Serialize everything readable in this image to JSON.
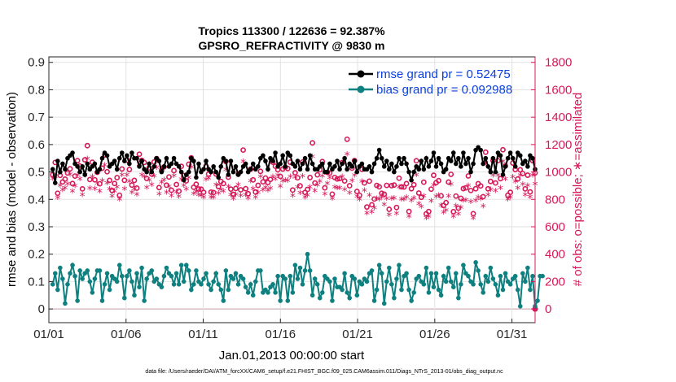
{
  "chart_data": {
    "type": "line",
    "title_line1": "Tropics 113300 / 122636 = 92.387%",
    "title_line2": "GPSRO_REFRACTIVITY @ 9830 m",
    "xlabel": "Jan.01,2013 00:00:00 start",
    "ylabel_left": "rmse and bias (model - observation)",
    "ylabel_right": "# of obs: o=possible; ∗=assimilated",
    "footnote": "data file: /Users/raeder/DAI/ATM_forcXX/CAM6_setup/f.e21.FHIST_BGC.f09_025.CAM6assim.011/Diags_NTrS_2013-01/obs_diag_output.nc",
    "x_range": [
      1,
      32.5
    ],
    "xticks": [
      {
        "day": 1,
        "label": "01/01"
      },
      {
        "day": 6,
        "label": "01/06"
      },
      {
        "day": 11,
        "label": "01/11"
      },
      {
        "day": 16,
        "label": "01/16"
      },
      {
        "day": 21,
        "label": "01/21"
      },
      {
        "day": 26,
        "label": "01/26"
      },
      {
        "day": 31,
        "label": "01/31"
      }
    ],
    "ylim_left": [
      -0.05,
      0.92
    ],
    "yticks_left": [
      "0",
      "0.1",
      "0.2",
      "0.3",
      "0.4",
      "0.5",
      "0.6",
      "0.7",
      "0.8",
      "0.9"
    ],
    "ylim_right": [
      -100,
      1840
    ],
    "yticks_right": [
      "0",
      "200",
      "400",
      "600",
      "800",
      "1000",
      "1200",
      "1400",
      "1600",
      "1800"
    ],
    "legend": [
      "rmse grand pr = 0.52475",
      "bias grand pr = 0.092988"
    ],
    "colors": {
      "rmse": "#000000",
      "bias": "#0f8080",
      "obs": "#d6195a",
      "legend_text": "#0b3fe0",
      "grid": "#e2e2e2"
    },
    "rmse": [
      0.51,
      0.46,
      0.54,
      0.5,
      0.53,
      0.51,
      0.55,
      0.56,
      0.57,
      0.53,
      0.52,
      0.5,
      0.52,
      0.49,
      0.53,
      0.51,
      0.52,
      0.53,
      0.5,
      0.51,
      0.55,
      0.57,
      0.56,
      0.52,
      0.53,
      0.54,
      0.51,
      0.55,
      0.57,
      0.54,
      0.56,
      0.53,
      0.57,
      0.55,
      0.55,
      0.52,
      0.54,
      0.51,
      0.5,
      0.53,
      0.5,
      0.52,
      0.55,
      0.54,
      0.5,
      0.52,
      0.55,
      0.52,
      0.53,
      0.55,
      0.53,
      0.52,
      0.5,
      0.47,
      0.49,
      0.5,
      0.55,
      0.54,
      0.48,
      0.53,
      0.5,
      0.51,
      0.54,
      0.51,
      0.5,
      0.52,
      0.5,
      0.48,
      0.52,
      0.55,
      0.54,
      0.49,
      0.54,
      0.5,
      0.52,
      0.49,
      0.5,
      0.52,
      0.53,
      0.5,
      0.51,
      0.53,
      0.51,
      0.52,
      0.55,
      0.56,
      0.54,
      0.51,
      0.55,
      0.54,
      0.57,
      0.52,
      0.53,
      0.56,
      0.52,
      0.57,
      0.56,
      0.53,
      0.52,
      0.54,
      0.51,
      0.53,
      0.55,
      0.51,
      0.56,
      0.53,
      0.51,
      0.51,
      0.52,
      0.53,
      0.5,
      0.5,
      0.53,
      0.51,
      0.52,
      0.54,
      0.51,
      0.53,
      0.55,
      0.51,
      0.53,
      0.52,
      0.54,
      0.5,
      0.52,
      0.53,
      0.51,
      0.51,
      0.52,
      0.5,
      0.53,
      0.55,
      0.58,
      0.55,
      0.52,
      0.54,
      0.51,
      0.53,
      0.5,
      0.52,
      0.55,
      0.53,
      0.55,
      0.53,
      0.5,
      0.47,
      0.5,
      0.52,
      0.51,
      0.54,
      0.51,
      0.55,
      0.52,
      0.54,
      0.57,
      0.52,
      0.55,
      0.53,
      0.5,
      0.51,
      0.55,
      0.54,
      0.57,
      0.53,
      0.55,
      0.52,
      0.57,
      0.53,
      0.55,
      0.5,
      0.53,
      0.58,
      0.59,
      0.58,
      0.53,
      0.55,
      0.52,
      0.5,
      0.55,
      0.5,
      0.57,
      0.56,
      0.49,
      0.52,
      0.55,
      0.57,
      0.55,
      0.52,
      0.57,
      0.56,
      0.53,
      0.54,
      0.52,
      0.56,
      0.55,
      0.51
    ],
    "bias": [
      0.09,
      0.13,
      0.07,
      0.15,
      0.11,
      0.02,
      0.09,
      0.13,
      0.16,
      0.12,
      0.03,
      0.14,
      0.11,
      0.13,
      0.14,
      0.1,
      0.06,
      0.11,
      0.14,
      0.14,
      0.03,
      0.09,
      0.13,
      0.07,
      0.12,
      0.11,
      0.1,
      0.16,
      0.12,
      0.04,
      0.12,
      0.14,
      0.1,
      0.05,
      0.13,
      0.08,
      0.15,
      0.03,
      0.11,
      0.13,
      0.14,
      0.1,
      0.11,
      0.09,
      0.08,
      0.12,
      0.15,
      0.13,
      0.12,
      0.09,
      0.13,
      0.09,
      0.16,
      0.1,
      0.16,
      0.14,
      0.07,
      0.09,
      0.14,
      0.1,
      0.09,
      0.11,
      0.13,
      0.09,
      0.07,
      0.1,
      0.13,
      0.09,
      0.07,
      0.03,
      0.14,
      0.07,
      0.12,
      0.11,
      0.13,
      0.09,
      0.12,
      0.11,
      0.08,
      0.06,
      0.09,
      0.05,
      0.1,
      0.14,
      0.14,
      0.06,
      0.07,
      0.06,
      0.08,
      0.09,
      0.06,
      0.12,
      0.03,
      0.12,
      0.11,
      0.03,
      0.12,
      0.06,
      0.16,
      0.11,
      0.15,
      0.09,
      0.14,
      0.2,
      0.14,
      0.05,
      0.11,
      0.09,
      0.04,
      0.06,
      0.12,
      0.11,
      0.1,
      0.03,
      0.11,
      0.08,
      0.08,
      0.07,
      0.13,
      0.06,
      0.04,
      0.12,
      0.11,
      0.05,
      0.1,
      0.09,
      0.11,
      0.1,
      0.13,
      0.14,
      0.03,
      0.07,
      0.16,
      0.13,
      0.02,
      0.1,
      0.15,
      0.09,
      0.04,
      0.11,
      0.16,
      0.07,
      0.12,
      0.13,
      0.07,
      0.03,
      0.06,
      0.11,
      0.12,
      0.1,
      0.09,
      0.15,
      0.06,
      0.13,
      0.08,
      0.13,
      0.07,
      0.05,
      0.12,
      0.1,
      0.15,
      0.1,
      0.08,
      0.13,
      0.04,
      0.09,
      0.16,
      0.13,
      0.12,
      0.1,
      0.09,
      0.17,
      0.14,
      0.09,
      0.06,
      0.12,
      0.1,
      0.15,
      0.11,
      0.09,
      0.05,
      0.12,
      0.07,
      0.13,
      0.1,
      0.09,
      0.11,
      0.12,
      0.07,
      0.01,
      0.13,
      0.1,
      0.15,
      0.07,
      0.12,
      0.01,
      0.03,
      0.12,
      0.12
    ]
  }
}
